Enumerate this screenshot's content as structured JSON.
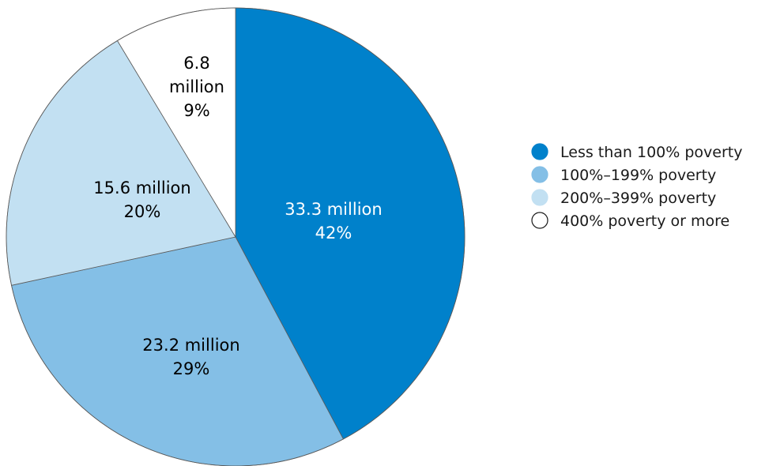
{
  "chart_data": {
    "type": "pie",
    "title": "",
    "slices": [
      {
        "label": "Less than 100% poverty",
        "value_text": "33.3 million",
        "value": 33.3,
        "percent": 42,
        "percent_text": "42%",
        "color": "#0081cb",
        "text_color": "#ffffff"
      },
      {
        "label": "100%–199% poverty",
        "value_text": "23.2 million",
        "value": 23.2,
        "percent": 29,
        "percent_text": "29%",
        "color": "#84bfe6",
        "text_color": "#000000"
      },
      {
        "label": "200%–399% poverty",
        "value_text": "15.6 million",
        "value": 15.6,
        "percent": 20,
        "percent_text": "20%",
        "color": "#c2e0f2",
        "text_color": "#000000"
      },
      {
        "label": "400% poverty or more",
        "value_text": "6.8 million",
        "value": 6.8,
        "percent": 9,
        "percent_text": "9%",
        "color": "#ffffff",
        "text_color": "#000000",
        "value_text_lines": [
          "6.8",
          "million"
        ]
      }
    ],
    "legend": {
      "position": "right"
    }
  }
}
